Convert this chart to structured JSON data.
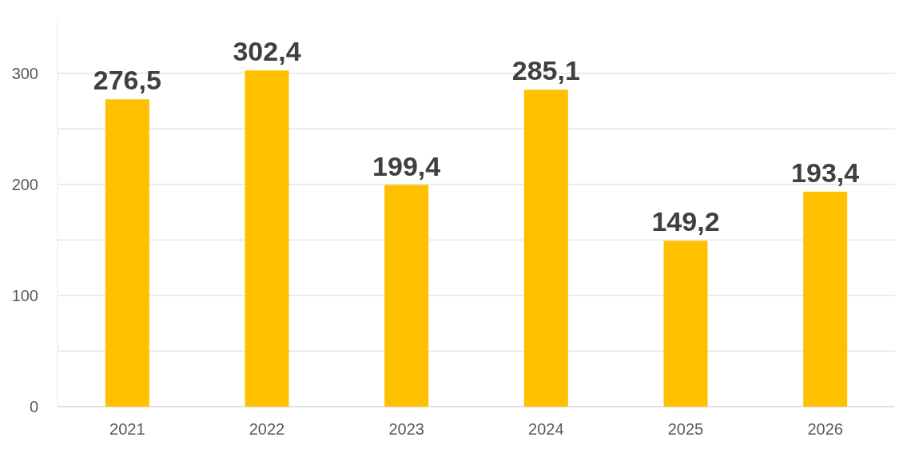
{
  "chart_data": {
    "type": "bar",
    "categories": [
      "2021",
      "2022",
      "2023",
      "2024",
      "2025",
      "2026"
    ],
    "values": [
      276.5,
      302.4,
      199.4,
      285.1,
      149.2,
      193.4
    ],
    "value_labels": [
      "276,5",
      "302,4",
      "199,4",
      "285,1",
      "149,2",
      "193,4"
    ],
    "color": "#ffc000",
    "ylim": [
      0,
      350
    ],
    "yticks": [
      0,
      {
        "value": 50,
        "label": null
      },
      100,
      {
        "value": 150,
        "label": null
      },
      200,
      {
        "value": 250,
        "label": null
      },
      300
    ],
    "grid": "y"
  }
}
